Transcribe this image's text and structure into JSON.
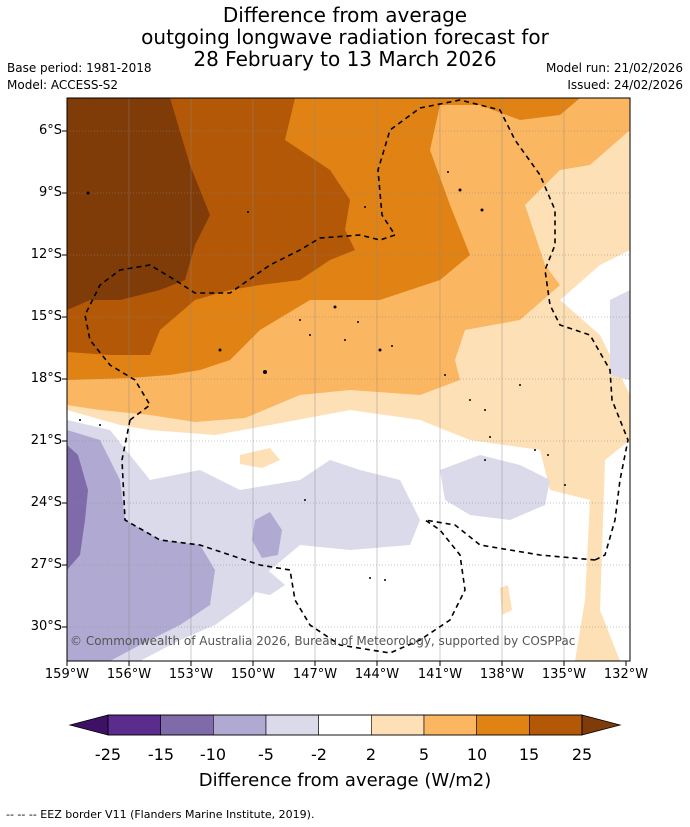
{
  "title": {
    "line1": "Difference from average",
    "line2": "outgoing longwave radiation forecast for",
    "line3": "28 February to 13 March 2026"
  },
  "meta": {
    "base_period": "Base period: 1981-2018",
    "model": "Model: ACCESS-S2",
    "model_run": "Model run: 21/02/2026",
    "issued": "Issued: 24/02/2026"
  },
  "lat_labels": [
    "6°S",
    "9°S",
    "12°S",
    "15°S",
    "18°S",
    "21°S",
    "24°S",
    "27°S",
    "30°S"
  ],
  "lon_labels": [
    "159°W",
    "156°W",
    "153°W",
    "150°W",
    "147°W",
    "144°W",
    "141°W",
    "138°W",
    "135°W",
    "132°W"
  ],
  "copyright": "© Commonwealth of Australia 2026, Bureau of Meteorology, supported by COSPPac",
  "colorbar": {
    "ticks": [
      "-25",
      "-15",
      "-10",
      "-5",
      "-2",
      "2",
      "5",
      "10",
      "15",
      "25"
    ],
    "colors": [
      "#5a2d8c",
      "#7f6aaa",
      "#b0aad2",
      "#dadaeb",
      "#ffffff",
      "#fee0b6",
      "#fbb661",
      "#e08214",
      "#b35806"
    ],
    "low_extend": "#3f1166",
    "high_extend": "#7f3b08",
    "label": "Difference from average (W/m2)"
  },
  "footer": "--  --  -- EEZ border V11 (Flanders Marine Institute, 2019)."
}
